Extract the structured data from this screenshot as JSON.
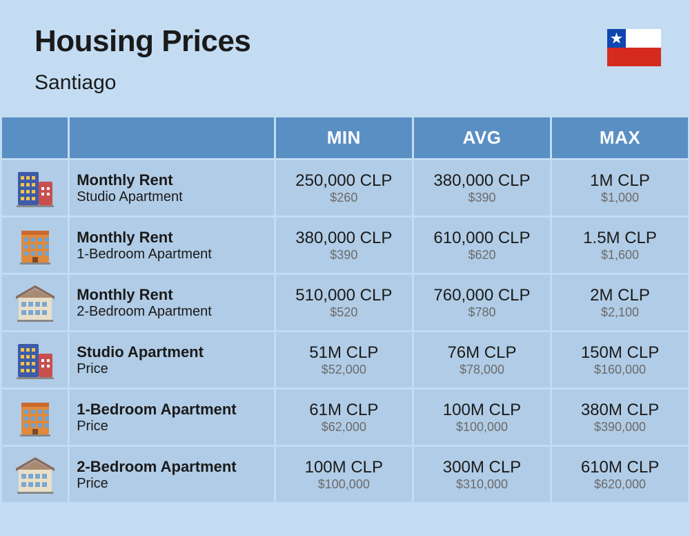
{
  "header": {
    "title": "Housing Prices",
    "subtitle": "Santiago"
  },
  "flag": {
    "blue": "#0f47af",
    "red": "#d52b1e",
    "white": "#ffffff",
    "star": "#ffffff"
  },
  "table": {
    "header_bg": "#5a8fc4",
    "row_bg": "#b1cce6",
    "page_bg": "#c3dcf2",
    "columns": [
      "",
      "",
      "MIN",
      "AVG",
      "MAX"
    ],
    "rows": [
      {
        "icon": "building-blue",
        "label_top": "Monthly Rent",
        "label_bot": "Studio Apartment",
        "min_top": "250,000 CLP",
        "min_bot": "$260",
        "avg_top": "380,000 CLP",
        "avg_bot": "$390",
        "max_top": "1M CLP",
        "max_bot": "$1,000"
      },
      {
        "icon": "building-orange",
        "label_top": "Monthly Rent",
        "label_bot": "1-Bedroom Apartment",
        "min_top": "380,000 CLP",
        "min_bot": "$390",
        "avg_top": "610,000 CLP",
        "avg_bot": "$620",
        "max_top": "1.5M CLP",
        "max_bot": "$1,600"
      },
      {
        "icon": "house-beige",
        "label_top": "Monthly Rent",
        "label_bot": "2-Bedroom Apartment",
        "min_top": "510,000 CLP",
        "min_bot": "$520",
        "avg_top": "760,000 CLP",
        "avg_bot": "$780",
        "max_top": "2M CLP",
        "max_bot": "$2,100"
      },
      {
        "icon": "building-blue",
        "label_top": "Studio Apartment",
        "label_bot": "Price",
        "min_top": "51M CLP",
        "min_bot": "$52,000",
        "avg_top": "76M CLP",
        "avg_bot": "$78,000",
        "max_top": "150M CLP",
        "max_bot": "$160,000"
      },
      {
        "icon": "building-orange",
        "label_top": "1-Bedroom Apartment",
        "label_bot": "Price",
        "min_top": "61M CLP",
        "min_bot": "$62,000",
        "avg_top": "100M CLP",
        "avg_bot": "$100,000",
        "max_top": "380M CLP",
        "max_bot": "$390,000"
      },
      {
        "icon": "house-beige",
        "label_top": "2-Bedroom Apartment",
        "label_bot": "Price",
        "min_top": "100M CLP",
        "min_bot": "$100,000",
        "avg_top": "300M CLP",
        "avg_bot": "$310,000",
        "max_top": "610M CLP",
        "max_bot": "$620,000"
      }
    ]
  },
  "icons": {
    "building-blue": {
      "main": "#3d5ba9",
      "accent": "#c94f4f",
      "window": "#f5c24b"
    },
    "building-orange": {
      "main": "#e08a3c",
      "accent": "#c96b2e",
      "window": "#6ba3d6"
    },
    "house-beige": {
      "main": "#e8dfc8",
      "roof": "#8a6a57",
      "window": "#7aa7d1"
    }
  }
}
